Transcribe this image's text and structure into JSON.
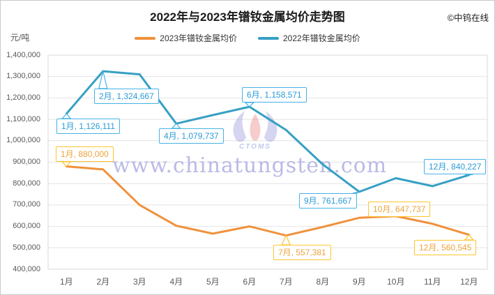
{
  "header": {
    "title": "2022年与2023年镨钕金属均价走势图",
    "copyright": "©中钨在线"
  },
  "legend": [
    {
      "label": "2023年镨钕金属均价",
      "color": "#F0913C"
    },
    {
      "label": "2022年镨钕金属均价",
      "color": "#36A0C3"
    }
  ],
  "watermark": {
    "text": "www.chinatungsten.com",
    "logo_caption": "CTOMS"
  },
  "chart_data": {
    "type": "line",
    "title": "2022年与2023年镨钕金属均价走势图",
    "ylabel": "元/吨",
    "ylim": [
      400000,
      1400000
    ],
    "ytick_step": 100000,
    "grid": true,
    "legend_position": "top",
    "categories": [
      "1月",
      "2月",
      "3月",
      "4月",
      "5月",
      "6月",
      "7月",
      "8月",
      "9月",
      "10月",
      "11月",
      "12月"
    ],
    "series": [
      {
        "name": "2023年镨钕金属均价",
        "color": "#F0913C",
        "label_border": "#FDC52F",
        "label_text": "#EDA33C",
        "values": [
          880000,
          866000,
          700000,
          603000,
          566000,
          600000,
          557381,
          597000,
          640000,
          647737,
          612000,
          560545
        ]
      },
      {
        "name": "2022年镨钕金属均价",
        "color": "#36A0C3",
        "label_border": "#45B2E8",
        "label_text": "#2B9BD7",
        "values": [
          1126111,
          1324667,
          1310000,
          1079737,
          1120000,
          1158571,
          1050000,
          890000,
          761667,
          825000,
          788000,
          840227
        ]
      }
    ],
    "point_labels": [
      {
        "series": 1,
        "month": 1,
        "text": "1月, 1,126,111"
      },
      {
        "series": 1,
        "month": 2,
        "text": "2月, 1,324,667"
      },
      {
        "series": 1,
        "month": 4,
        "text": "4月, 1,079,737"
      },
      {
        "series": 1,
        "month": 6,
        "text": "6月, 1,158,571"
      },
      {
        "series": 1,
        "month": 9,
        "text": "9月, 761,667"
      },
      {
        "series": 1,
        "month": 12,
        "text": "12月, 840,227"
      },
      {
        "series": 0,
        "month": 1,
        "text": "1月, 880,000"
      },
      {
        "series": 0,
        "month": 7,
        "text": "7月, 557,381"
      },
      {
        "series": 0,
        "month": 10,
        "text": "10月, 647,737"
      },
      {
        "series": 0,
        "month": 12,
        "text": "12月, 560,545"
      }
    ]
  }
}
